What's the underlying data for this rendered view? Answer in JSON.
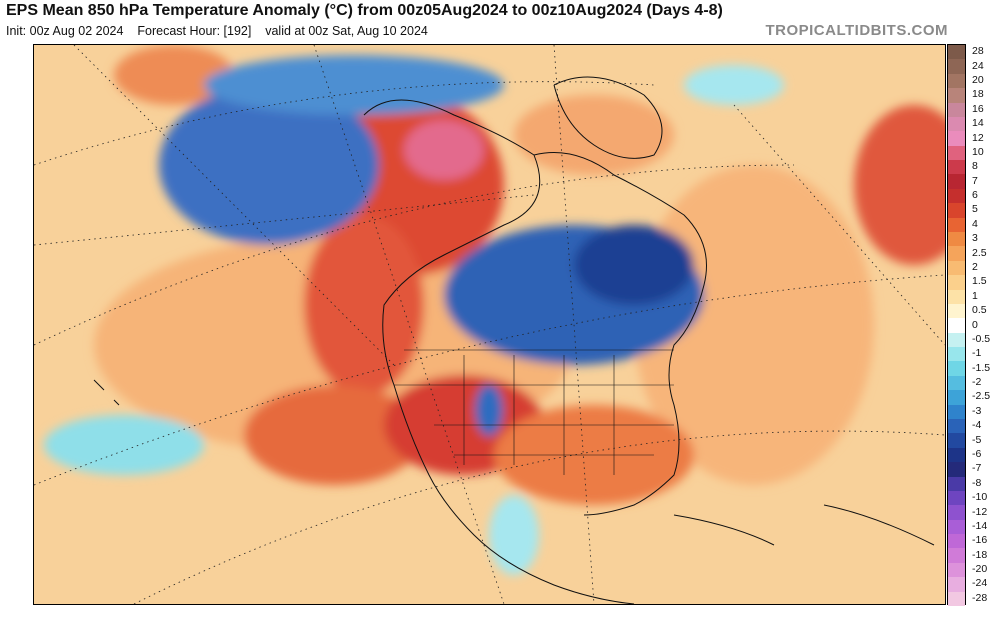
{
  "header": {
    "title": "EPS Mean 850 hPa Temperature Anomaly (°C) from 00z05Aug2024 to 00z10Aug2024 (Days 4-8)",
    "init": "Init: 00z Aug 02 2024",
    "forecast_hour": "Forecast Hour: [192]",
    "valid": "valid at 00z Sat, Aug 10 2024",
    "brand": "TROPICALTIDBITS.COM"
  },
  "colorbar": {
    "levels": [
      "28",
      "24",
      "20",
      "18",
      "16",
      "14",
      "12",
      "10",
      "8",
      "7",
      "6",
      "5",
      "4",
      "3",
      "2.5",
      "2",
      "1.5",
      "1",
      "0.5",
      "0",
      "-0.5",
      "-1",
      "-1.5",
      "-2",
      "-2.5",
      "-3",
      "-4",
      "-5",
      "-6",
      "-7",
      "-8",
      "-10",
      "-12",
      "-14",
      "-16",
      "-18",
      "-20",
      "-24",
      "-28"
    ],
    "colors": [
      "#7d5a4a",
      "#8e6655",
      "#a27563",
      "#b8847a",
      "#c9879c",
      "#db8ab0",
      "#ea8cbc",
      "#e0627e",
      "#cc3a4b",
      "#b82632",
      "#c52f2d",
      "#d9452c",
      "#e86433",
      "#ef8a43",
      "#f5a45b",
      "#f8bb72",
      "#fbd08c",
      "#fde2a7",
      "#fff4cf",
      "#ffffff",
      "#c5f1f1",
      "#98e6ec",
      "#6fd6e6",
      "#55bde0",
      "#3da3d8",
      "#2f83cc",
      "#2a63b8",
      "#2249a0",
      "#1d3488",
      "#242a7a",
      "#4a3aa7",
      "#6e45c0",
      "#8e52cf",
      "#a95ed7",
      "#bf68d7",
      "#d07bd8",
      "#dd92db",
      "#e8aee0",
      "#f2c8e2"
    ]
  },
  "map": {
    "region": "North America",
    "features": [
      "Alaska warm anomaly",
      "Western US warm anomaly",
      "Canada cold anomaly",
      "Bering Sea cold anomaly",
      "Hawaii cold anomaly"
    ]
  }
}
